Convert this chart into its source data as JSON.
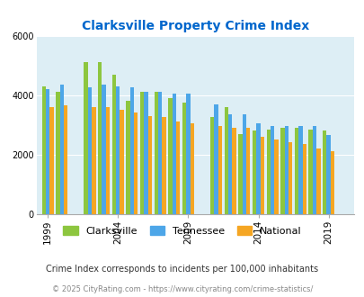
{
  "title": "Clarksville Property Crime Index",
  "years": [
    1999,
    2000,
    2001,
    2002,
    2003,
    2004,
    2005,
    2006,
    2007,
    2008,
    2009,
    2010,
    2011,
    2012,
    2013,
    2014,
    2015,
    2016,
    2017,
    2018,
    2019,
    2020
  ],
  "clarksville": [
    4300,
    4100,
    null,
    5100,
    5100,
    4700,
    3800,
    4100,
    4100,
    3900,
    3750,
    null,
    3250,
    3600,
    2700,
    2800,
    2850,
    2900,
    2900,
    2850,
    2800,
    null
  ],
  "tennessee": [
    4200,
    4350,
    null,
    4250,
    4350,
    4300,
    4250,
    4100,
    4100,
    4050,
    4050,
    null,
    3700,
    3350,
    3350,
    3050,
    2950,
    2950,
    2950,
    2950,
    2650,
    null
  ],
  "national": [
    3600,
    3650,
    null,
    3600,
    3600,
    3500,
    3400,
    3300,
    3250,
    3100,
    3050,
    null,
    2950,
    2900,
    2900,
    2600,
    2500,
    2400,
    2350,
    2200,
    2100,
    null
  ],
  "clarksville_color": "#8dc63f",
  "tennessee_color": "#4da6e8",
  "national_color": "#f5a623",
  "bg_color": "#ddeef5",
  "ylim": [
    0,
    6000
  ],
  "yticks": [
    0,
    2000,
    4000,
    6000
  ],
  "xlabel_ticks": [
    1999,
    2004,
    2009,
    2014,
    2019
  ],
  "subtitle": "Crime Index corresponds to incidents per 100,000 inhabitants",
  "footer": "© 2025 CityRating.com - https://www.cityrating.com/crime-statistics/",
  "title_color": "#0066cc",
  "subtitle_color": "#333333",
  "footer_color": "#888888"
}
